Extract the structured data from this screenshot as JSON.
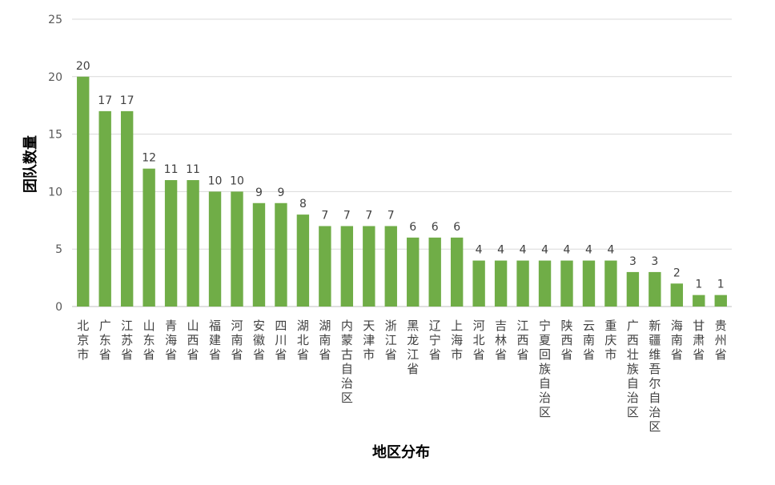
{
  "chart_data": {
    "type": "bar",
    "xlabel": "地区分布",
    "ylabel": "团队数量",
    "ylim": [
      0,
      25
    ],
    "yticks": [
      0,
      5,
      10,
      15,
      20,
      25
    ],
    "grid": true,
    "bar_color": "#70AD47",
    "data_labels": true,
    "categories": [
      "北京市",
      "广东省",
      "江苏省",
      "山东省",
      "青海省",
      "山西省",
      "福建省",
      "河南省",
      "安徽省",
      "四川省",
      "湖北省",
      "湖南省",
      "内蒙古自治区",
      "天津市",
      "浙江省",
      "黑龙江省",
      "辽宁省",
      "上海市",
      "河北省",
      "吉林省",
      "江西省",
      "宁夏回族自治区",
      "陕西省",
      "云南省",
      "重庆市",
      "广西壮族自治区",
      "新疆维吾尔自治区",
      "海南省",
      "甘肃省",
      "贵州省"
    ],
    "values": [
      20,
      17,
      17,
      12,
      11,
      11,
      10,
      10,
      9,
      9,
      8,
      7,
      7,
      7,
      7,
      6,
      6,
      6,
      4,
      4,
      4,
      4,
      4,
      4,
      4,
      3,
      3,
      2,
      1,
      1
    ]
  }
}
